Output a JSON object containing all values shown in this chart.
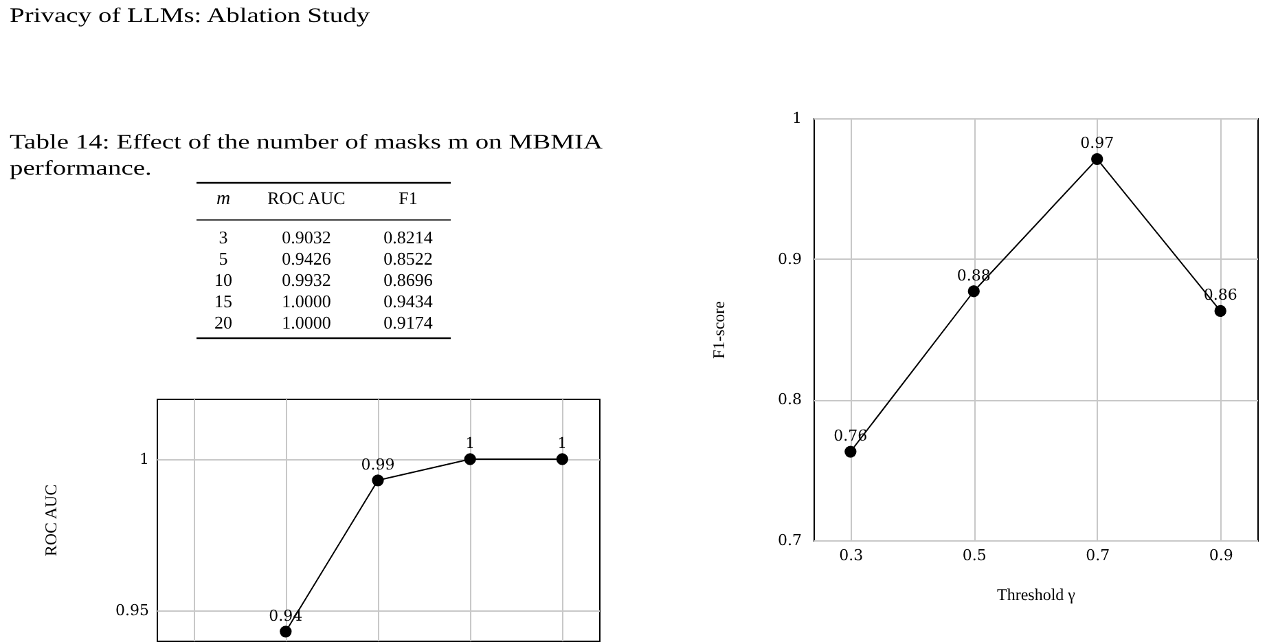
{
  "chart_data": [
    {
      "type": "heatmap",
      "title": "Table 14: Effect of the number of masks m on MBMIA performance.",
      "annotations": [
        "Privacy of LLMs: Ablation Study"
      ],
      "categories": [
        "ROC AUC",
        "F1"
      ],
      "y_categories": [
        "3",
        "5",
        "10",
        "15",
        "20"
      ],
      "ylabel": "m",
      "cells": [
        [
          0.9032,
          0.8214
        ],
        [
          0.9426,
          0.8522
        ],
        [
          0.9932,
          0.8696
        ],
        [
          1,
          0.9434
        ],
        [
          1,
          0.9174
        ]
      ],
      "cell_labels": [
        [
          "0.9032",
          "0.8214"
        ],
        [
          "0.9426",
          "0.8522"
        ],
        [
          "0.9932",
          "0.8696"
        ],
        [
          "1.0000",
          "0.9434"
        ],
        [
          "1.0000",
          "0.9174"
        ]
      ]
    },
    {
      "type": "line",
      "categories": [
        null,
        null,
        null,
        null,
        null
      ],
      "values": [
        null,
        0.943,
        0.993,
        1,
        1
      ],
      "value_labels": [
        null,
        "0.94",
        "0.99",
        "1",
        "1"
      ],
      "color": "#000000",
      "ylabel": "ROC AUC",
      "ylim": [
        0.94,
        1.02
      ],
      "yticks": [
        0.95,
        1
      ],
      "tick_labels": "y",
      "grid": true,
      "marker": "circle"
    },
    {
      "type": "line",
      "x": [
        0.3,
        0.5,
        0.7,
        0.9
      ],
      "values": [
        0.763,
        0.877,
        0.971,
        0.863
      ],
      "value_labels": [
        "0.76",
        "0.88",
        "0.97",
        "0.86"
      ],
      "color": "#000000",
      "xlabel": "Threshold γ",
      "ylabel": "F1-score",
      "xlim": [
        0.24,
        0.96
      ],
      "xticks": [
        0.3,
        0.5,
        0.7,
        0.9
      ],
      "ylim": [
        0.7,
        1
      ],
      "yticks": [
        0.7,
        0.8,
        0.9,
        1
      ],
      "grid": true,
      "marker": "circle"
    }
  ]
}
